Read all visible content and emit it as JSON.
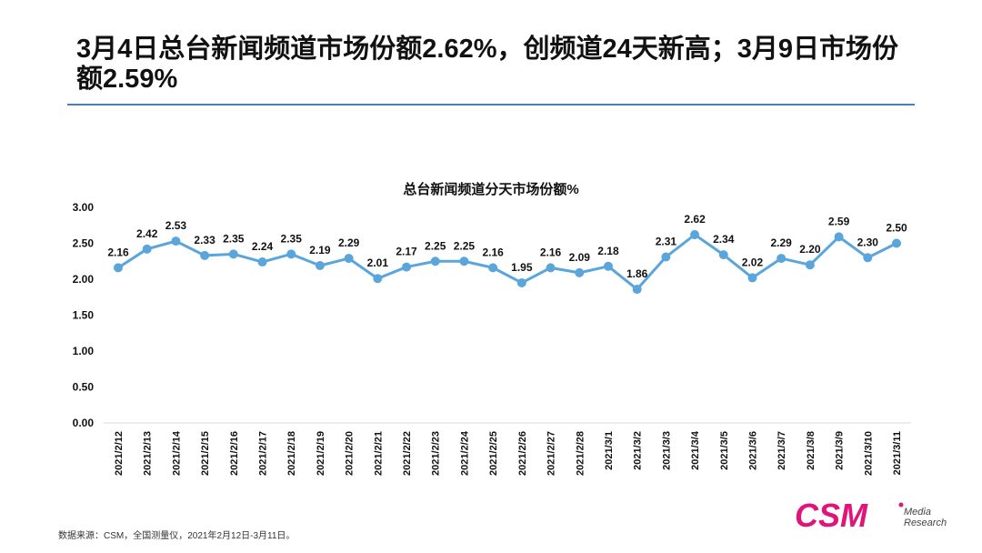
{
  "headline": "3月4日总台新闻频道市场份额2.62%，创频道24天新高；3月9日市场份额2.59%",
  "source_note": "数据来源：CSM，全国测量仪，2021年2月12日-3月11日。",
  "logo": {
    "main": "CSM",
    "sub1": "Media",
    "sub2": "Research",
    "color": "#e0157a"
  },
  "colors": {
    "line": "#5aa6dc",
    "rule": "#4a7fb5",
    "text": "#111111",
    "axis": "#d9d9d9"
  },
  "chart_data": {
    "type": "line",
    "title": "总台新闻频道分天市场份额%",
    "xlabel": "",
    "ylabel": "",
    "ylim": [
      0,
      3
    ],
    "ytick_labels": [
      "0.00",
      "0.50",
      "1.00",
      "1.50",
      "2.00",
      "2.50",
      "3.00"
    ],
    "ytick_values": [
      0,
      0.5,
      1,
      1.5,
      2,
      2.5,
      3
    ],
    "grid": false,
    "categories": [
      "2021/2/12",
      "2021/2/13",
      "2021/2/14",
      "2021/2/15",
      "2021/2/16",
      "2021/2/17",
      "2021/2/18",
      "2021/2/19",
      "2021/2/20",
      "2021/2/21",
      "2021/2/22",
      "2021/2/23",
      "2021/2/24",
      "2021/2/25",
      "2021/2/26",
      "2021/2/27",
      "2021/2/28",
      "2021/3/1",
      "2021/3/2",
      "2021/3/3",
      "2021/3/4",
      "2021/3/5",
      "2021/3/6",
      "2021/3/7",
      "2021/3/8",
      "2021/3/9",
      "2021/3/10",
      "2021/3/11"
    ],
    "values": [
      2.16,
      2.42,
      2.53,
      2.33,
      2.35,
      2.24,
      2.35,
      2.19,
      2.29,
      2.01,
      2.17,
      2.25,
      2.25,
      2.16,
      1.95,
      2.16,
      2.09,
      2.18,
      1.86,
      2.31,
      2.62,
      2.34,
      2.02,
      2.29,
      2.2,
      2.59,
      2.3,
      2.5
    ],
    "value_labels": [
      "2.16",
      "2.42",
      "2.53",
      "2.33",
      "2.35",
      "2.24",
      "2.35",
      "2.19",
      "2.29",
      "2.01",
      "2.17",
      "2.25",
      "2.25",
      "2.16",
      "1.95",
      "2.16",
      "2.09",
      "2.18",
      "1.86",
      "2.31",
      "2.62",
      "2.34",
      "2.02",
      "2.29",
      "2.20",
      "2.59",
      "2.30",
      "2.50"
    ]
  }
}
